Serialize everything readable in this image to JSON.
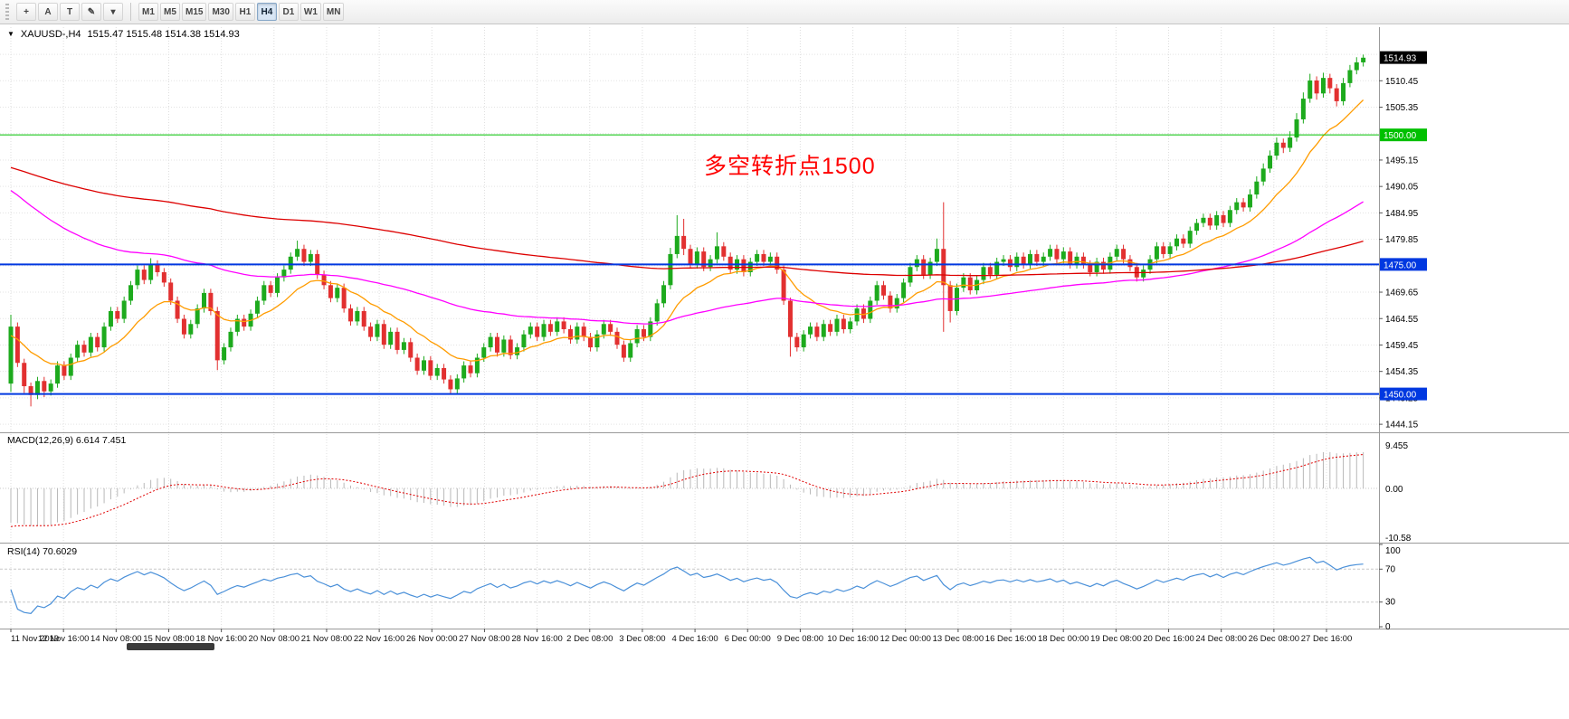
{
  "toolbar": {
    "icon_buttons": [
      {
        "name": "crosshair-tool-button",
        "glyph": "+"
      },
      {
        "name": "arrow-tool-button",
        "glyph": "A"
      },
      {
        "name": "text-tool-button",
        "glyph": "T"
      },
      {
        "name": "drawing-tools-button",
        "glyph": "✎"
      },
      {
        "name": "drawing-tools-dropdown",
        "glyph": "▾"
      }
    ],
    "timeframes": [
      "M1",
      "M5",
      "M15",
      "M30",
      "H1",
      "H4",
      "D1",
      "W1",
      "MN"
    ],
    "active_timeframe": "H4"
  },
  "chart": {
    "title_marker": "▼",
    "symbol_period": "XAUUSD-,H4",
    "ohlc_text": "1515.47 1515.48 1514.38 1514.93",
    "annotation": {
      "text": "多空转折点1500",
      "color": "#ff0000"
    },
    "macd_label": "MACD(12,26,9) 6.614 7.451",
    "rsi_label": "RSI(14) 70.6029"
  },
  "chart_data": {
    "type": "candlestick",
    "symbol": "XAUUSD-",
    "period": "H4",
    "ohlc_current": {
      "open": 1515.47,
      "high": 1515.48,
      "low": 1514.38,
      "close": 1514.93
    },
    "up_color": "#1daa1d",
    "down_color": "#e23030",
    "price_axis": {
      "min": 1442.6,
      "max": 1520.8,
      "grid_start": 1444.15,
      "grid_step": 5.1,
      "labels": [
        1510.45,
        1505.35,
        1495.15,
        1490.05,
        1484.95,
        1479.85,
        1469.65,
        1464.55,
        1459.45,
        1454.35,
        1449.25,
        1444.15
      ]
    },
    "current_badge": {
      "price": 1514.93,
      "label": "1514.93",
      "bg": "#000000"
    },
    "hlines": [
      {
        "price": 1500,
        "label": "1500.00",
        "color": "#00c000",
        "width": 1
      },
      {
        "price": 1475,
        "label": "1475.00",
        "color": "#0038e0",
        "width": 2
      },
      {
        "price": 1450,
        "label": "1450.00",
        "color": "#0038e0",
        "width": 2
      }
    ],
    "moving_averages": [
      {
        "name": "ma-fast-orange",
        "period": 14,
        "seed": 1461,
        "color": "#ff9c00"
      },
      {
        "name": "ma-mid-magenta",
        "period": 72,
        "seed": 1490,
        "color": "#ff00ff"
      },
      {
        "name": "ma-slow-red",
        "period": 200,
        "seed": 1494,
        "color": "#dd0000"
      }
    ],
    "macd": {
      "params": [
        12,
        26,
        9
      ],
      "values": [
        6.614,
        7.451
      ],
      "axis_labels": {
        "top": "9.455",
        "zero": "0.00",
        "bottom": "-10.58"
      },
      "range": [
        -11.8,
        12.2
      ],
      "seeds": [
        1464,
        1472,
        -8.5
      ],
      "hist_color": "#b8b8b8",
      "signal_color": "#e00000"
    },
    "rsi": {
      "period": 14,
      "value": 70.6029,
      "levels": [
        70,
        30
      ],
      "axis_labels": [
        100,
        70,
        30,
        0
      ],
      "range": [
        0,
        100
      ],
      "seeds": [
        0.35,
        0.75
      ],
      "color": "#4a90d9"
    },
    "time_labels": [
      "11 Nov 2019",
      "12 Nov 16:00",
      "14 Nov 08:00",
      "15 Nov 08:00",
      "18 Nov 16:00",
      "20 Nov 08:00",
      "21 Nov 08:00",
      "22 Nov 16:00",
      "26 Nov 00:00",
      "27 Nov 08:00",
      "28 Nov 16:00",
      "2 Dec 08:00",
      "3 Dec 08:00",
      "4 Dec 16:00",
      "6 Dec 00:00",
      "9 Dec 08:00",
      "10 Dec 16:00",
      "12 Dec 00:00",
      "13 Dec 08:00",
      "16 Dec 16:00",
      "18 Dec 00:00",
      "19 Dec 08:00",
      "20 Dec 16:00",
      "24 Dec 08:00",
      "26 Dec 08:00",
      "27 Dec 16:00"
    ],
    "candles": [
      [
        1452,
        1465.3,
        1450.4,
        1463
      ],
      [
        1463,
        1463.8,
        1455.2,
        1456
      ],
      [
        1456,
        1456.8,
        1450.2,
        1451.5
      ],
      [
        1451.5,
        1452.2,
        1447.6,
        1449.8
      ],
      [
        1449.8,
        1453.3,
        1449,
        1452.5
      ],
      [
        1452.5,
        1453.3,
        1449.4,
        1450.5
      ],
      [
        1450.5,
        1452.8,
        1449.7,
        1452
      ],
      [
        1452,
        1456.3,
        1451.2,
        1455.5
      ],
      [
        1455.5,
        1456.3,
        1452.7,
        1453.5
      ],
      [
        1453.5,
        1457.8,
        1452.7,
        1457
      ],
      [
        1457,
        1460.3,
        1456.2,
        1459.5
      ],
      [
        1459.5,
        1460.3,
        1457.2,
        1458
      ],
      [
        1458,
        1461.8,
        1457.2,
        1461
      ],
      [
        1461,
        1461.8,
        1458.2,
        1459
      ],
      [
        1459,
        1463.8,
        1458.2,
        1463
      ],
      [
        1463,
        1466.8,
        1462.2,
        1466
      ],
      [
        1466,
        1466.8,
        1463.7,
        1464.5
      ],
      [
        1464.5,
        1468.8,
        1463.7,
        1468
      ],
      [
        1468,
        1471.8,
        1467.2,
        1471
      ],
      [
        1471,
        1474.8,
        1470.2,
        1474
      ],
      [
        1474,
        1474.8,
        1471.2,
        1472
      ],
      [
        1472,
        1476.2,
        1471.2,
        1475
      ],
      [
        1475,
        1475.8,
        1472.7,
        1473.5
      ],
      [
        1473.5,
        1474.3,
        1470.7,
        1471.5
      ],
      [
        1471.5,
        1472.3,
        1467.2,
        1468
      ],
      [
        1468,
        1468.8,
        1463.7,
        1464.5
      ],
      [
        1464.5,
        1465.3,
        1460.7,
        1461.5
      ],
      [
        1461.5,
        1464.3,
        1460.7,
        1463.5
      ],
      [
        1463.5,
        1467.3,
        1462.7,
        1466.5
      ],
      [
        1466.5,
        1470.3,
        1465.7,
        1469.5
      ],
      [
        1469.5,
        1470.3,
        1465.2,
        1466
      ],
      [
        1466,
        1466.8,
        1454.6,
        1456.5
      ],
      [
        1456.5,
        1459.8,
        1455.7,
        1459
      ],
      [
        1459,
        1462.8,
        1458.2,
        1462
      ],
      [
        1462,
        1465.3,
        1461.2,
        1464.5
      ],
      [
        1464.5,
        1465.3,
        1462.2,
        1463
      ],
      [
        1463,
        1466.3,
        1462.2,
        1465.5
      ],
      [
        1465.5,
        1468.8,
        1464.7,
        1468
      ],
      [
        1468,
        1471.8,
        1467.2,
        1471
      ],
      [
        1471,
        1471.8,
        1468.7,
        1469.5
      ],
      [
        1469.5,
        1473.3,
        1468.7,
        1472.5
      ],
      [
        1472.5,
        1474.8,
        1471.7,
        1474
      ],
      [
        1474,
        1477.3,
        1473.2,
        1476.5
      ],
      [
        1476.5,
        1479.6,
        1475.7,
        1478
      ],
      [
        1478,
        1478.8,
        1474.7,
        1475.5
      ],
      [
        1475.5,
        1477.8,
        1474.7,
        1477
      ],
      [
        1477,
        1477.8,
        1472.2,
        1473
      ],
      [
        1473,
        1473.8,
        1470.2,
        1471
      ],
      [
        1471,
        1471.8,
        1467.7,
        1468.5
      ],
      [
        1468.5,
        1471.3,
        1467.7,
        1470.5
      ],
      [
        1470.5,
        1471.3,
        1465.7,
        1466.5
      ],
      [
        1466.5,
        1467.3,
        1463.2,
        1464
      ],
      [
        1464,
        1466.8,
        1463.2,
        1466
      ],
      [
        1466,
        1466.8,
        1462.2,
        1463
      ],
      [
        1463,
        1463.8,
        1460.2,
        1461
      ],
      [
        1461,
        1464.3,
        1460.2,
        1463.5
      ],
      [
        1463.5,
        1464.3,
        1458.7,
        1459.5
      ],
      [
        1459.5,
        1462.8,
        1458.7,
        1462
      ],
      [
        1462,
        1462.8,
        1457.7,
        1458.5
      ],
      [
        1458.5,
        1460.8,
        1457.7,
        1460
      ],
      [
        1460,
        1460.8,
        1456.2,
        1457
      ],
      [
        1457,
        1457.8,
        1453.7,
        1454.5
      ],
      [
        1454.5,
        1457.3,
        1453.7,
        1456.5
      ],
      [
        1456.5,
        1457.3,
        1452.7,
        1453.5
      ],
      [
        1453.5,
        1455.8,
        1452.7,
        1455
      ],
      [
        1455,
        1455.8,
        1452,
        1452.8
      ],
      [
        1452.8,
        1453.6,
        1450.1,
        1450.9
      ],
      [
        1450.9,
        1453.8,
        1450.1,
        1453
      ],
      [
        1453,
        1456.3,
        1452.2,
        1455.5
      ],
      [
        1455.5,
        1456.3,
        1453.2,
        1454
      ],
      [
        1454,
        1457.8,
        1453.2,
        1457
      ],
      [
        1457,
        1459.8,
        1456.2,
        1459
      ],
      [
        1459,
        1461.8,
        1458.2,
        1461
      ],
      [
        1461,
        1461.8,
        1457.2,
        1458
      ],
      [
        1458,
        1461.3,
        1457.2,
        1460.5
      ],
      [
        1460.5,
        1461.3,
        1456.7,
        1457.5
      ],
      [
        1457.5,
        1459.8,
        1456.7,
        1459
      ],
      [
        1459,
        1462.3,
        1458.2,
        1461.5
      ],
      [
        1461.5,
        1463.8,
        1460.7,
        1463
      ],
      [
        1463,
        1463.8,
        1460.2,
        1461
      ],
      [
        1461,
        1464.3,
        1460.2,
        1463.5
      ],
      [
        1463.5,
        1464.3,
        1461.2,
        1462
      ],
      [
        1462,
        1464.8,
        1461.2,
        1464
      ],
      [
        1464,
        1464.8,
        1461.7,
        1462.5
      ],
      [
        1462.5,
        1463.3,
        1459.7,
        1460.5
      ],
      [
        1460.5,
        1463.8,
        1459.7,
        1463
      ],
      [
        1463,
        1463.8,
        1460.2,
        1461
      ],
      [
        1461,
        1461.8,
        1458.2,
        1459
      ],
      [
        1459,
        1462.3,
        1458.2,
        1461.5
      ],
      [
        1461.5,
        1464.3,
        1460.7,
        1463.5
      ],
      [
        1463.5,
        1464.3,
        1461.2,
        1462
      ],
      [
        1462,
        1462.8,
        1458.7,
        1459.5
      ],
      [
        1459.5,
        1460.3,
        1456.2,
        1457
      ],
      [
        1457,
        1460.6,
        1456.2,
        1459.8
      ],
      [
        1459.8,
        1463.3,
        1459,
        1462.5
      ],
      [
        1462.5,
        1463.3,
        1460.2,
        1461
      ],
      [
        1461,
        1464.8,
        1460.2,
        1464
      ],
      [
        1464,
        1468.3,
        1463.2,
        1467.5
      ],
      [
        1467.5,
        1471.8,
        1466.7,
        1471
      ],
      [
        1471,
        1478.2,
        1470.2,
        1477
      ],
      [
        1477,
        1484.5,
        1476.2,
        1480.5
      ],
      [
        1480.5,
        1483.8,
        1476.8,
        1478
      ],
      [
        1478,
        1478.8,
        1474.2,
        1475
      ],
      [
        1475,
        1478.3,
        1474.2,
        1477.5
      ],
      [
        1477.5,
        1478.3,
        1473.7,
        1474.5
      ],
      [
        1474.5,
        1476.8,
        1473.7,
        1476
      ],
      [
        1476,
        1481.2,
        1475.2,
        1478.5
      ],
      [
        1478.5,
        1479.3,
        1475.7,
        1476.5
      ],
      [
        1476.5,
        1477.3,
        1473.2,
        1474
      ],
      [
        1474,
        1476.8,
        1473.2,
        1476
      ],
      [
        1476,
        1476.8,
        1472.7,
        1473.5
      ],
      [
        1473.5,
        1476.3,
        1472.7,
        1475.5
      ],
      [
        1475.5,
        1477.8,
        1474.7,
        1477
      ],
      [
        1477,
        1477.8,
        1474.7,
        1475.5
      ],
      [
        1475.5,
        1477.3,
        1474.7,
        1476.5
      ],
      [
        1476.5,
        1477.3,
        1473.2,
        1474
      ],
      [
        1474,
        1474.8,
        1467.2,
        1468
      ],
      [
        1468,
        1468.6,
        1457.2,
        1461
      ],
      [
        1461,
        1461.8,
        1458.2,
        1459
      ],
      [
        1459,
        1462.3,
        1458.2,
        1461.5
      ],
      [
        1461.5,
        1463.8,
        1460.7,
        1463
      ],
      [
        1463,
        1463.8,
        1460.2,
        1461
      ],
      [
        1461,
        1464.3,
        1460.2,
        1463.5
      ],
      [
        1463.5,
        1464.3,
        1461.2,
        1462
      ],
      [
        1462,
        1465.3,
        1461.2,
        1464.5
      ],
      [
        1464.5,
        1465.3,
        1461.7,
        1462.5
      ],
      [
        1462.5,
        1464.8,
        1461.7,
        1464
      ],
      [
        1464,
        1467.3,
        1463.2,
        1466.5
      ],
      [
        1466.5,
        1467.3,
        1463.7,
        1464.5
      ],
      [
        1464.5,
        1468.8,
        1463.7,
        1468
      ],
      [
        1468,
        1471.8,
        1467.2,
        1471
      ],
      [
        1471,
        1471.8,
        1468.2,
        1469
      ],
      [
        1469,
        1469.8,
        1465.7,
        1466.5
      ],
      [
        1466.5,
        1469.3,
        1465.7,
        1468.5
      ],
      [
        1468.5,
        1472.3,
        1467.7,
        1471.5
      ],
      [
        1471.5,
        1475.3,
        1470.7,
        1474.5
      ],
      [
        1474.5,
        1476.8,
        1473.7,
        1476
      ],
      [
        1476,
        1476.8,
        1472.2,
        1473
      ],
      [
        1473,
        1476.3,
        1472.2,
        1475.5
      ],
      [
        1475.5,
        1480,
        1474.7,
        1478
      ],
      [
        1478,
        1487,
        1462,
        1471
      ],
      [
        1471,
        1471.8,
        1463.8,
        1466
      ],
      [
        1466,
        1471.3,
        1465.2,
        1470.5
      ],
      [
        1470.5,
        1473.3,
        1469.7,
        1472.5
      ],
      [
        1472.5,
        1473.3,
        1469.2,
        1470
      ],
      [
        1470,
        1472.8,
        1469.2,
        1472
      ],
      [
        1472,
        1475.3,
        1471.2,
        1474.5
      ],
      [
        1474.5,
        1475.3,
        1472.2,
        1473
      ],
      [
        1473,
        1476.3,
        1472.2,
        1475.5
      ],
      [
        1475.5,
        1476.8,
        1474.7,
        1476
      ],
      [
        1476,
        1476.8,
        1473.7,
        1474.5
      ],
      [
        1474.5,
        1477.3,
        1473.7,
        1476.5
      ],
      [
        1476.5,
        1477.3,
        1474.2,
        1475
      ],
      [
        1475,
        1477.8,
        1474.2,
        1477
      ],
      [
        1477,
        1477.8,
        1474.7,
        1475.5
      ],
      [
        1475.5,
        1477.3,
        1474.7,
        1476.5
      ],
      [
        1476.5,
        1478.8,
        1475.7,
        1478
      ],
      [
        1478,
        1478.8,
        1475.2,
        1476
      ],
      [
        1476,
        1478.3,
        1475.2,
        1477.5
      ],
      [
        1477.5,
        1478.3,
        1474.2,
        1475
      ],
      [
        1475,
        1477.3,
        1474.2,
        1476.5
      ],
      [
        1476.5,
        1477.3,
        1474.2,
        1475
      ],
      [
        1475,
        1475.8,
        1472.7,
        1473.5
      ],
      [
        1473.5,
        1476.3,
        1472.7,
        1475.5
      ],
      [
        1475.5,
        1476.3,
        1473.2,
        1474
      ],
      [
        1474,
        1477.3,
        1473.2,
        1476.5
      ],
      [
        1476.5,
        1478.8,
        1475.7,
        1478
      ],
      [
        1478,
        1478.8,
        1475.2,
        1476
      ],
      [
        1476,
        1476.8,
        1473.7,
        1474.5
      ],
      [
        1474.5,
        1475.3,
        1471.7,
        1472.5
      ],
      [
        1472.5,
        1474.8,
        1471.7,
        1474
      ],
      [
        1474,
        1476.8,
        1473.2,
        1476
      ],
      [
        1476,
        1479.3,
        1475.2,
        1478.5
      ],
      [
        1478.5,
        1479.3,
        1476.2,
        1477
      ],
      [
        1477,
        1479.3,
        1476.2,
        1478.5
      ],
      [
        1478.5,
        1480.8,
        1477.7,
        1480
      ],
      [
        1480,
        1480.8,
        1478.2,
        1479
      ],
      [
        1479,
        1482.3,
        1478.2,
        1481.5
      ],
      [
        1481.5,
        1483.8,
        1480.7,
        1483
      ],
      [
        1483,
        1484.8,
        1482.2,
        1484
      ],
      [
        1484,
        1484.8,
        1481.7,
        1482.5
      ],
      [
        1482.5,
        1485.3,
        1481.7,
        1484.5
      ],
      [
        1484.5,
        1485.3,
        1482.2,
        1483
      ],
      [
        1483,
        1486.3,
        1482.2,
        1485.5
      ],
      [
        1485.5,
        1487.8,
        1484.7,
        1487
      ],
      [
        1487,
        1487.8,
        1485.2,
        1486
      ],
      [
        1486,
        1489.5,
        1485.2,
        1488.5
      ],
      [
        1488.5,
        1492,
        1487.7,
        1491
      ],
      [
        1491,
        1494.5,
        1490.2,
        1493.5
      ],
      [
        1493.5,
        1497,
        1492.7,
        1496
      ],
      [
        1496,
        1499.5,
        1495.2,
        1498.5
      ],
      [
        1498.5,
        1499.3,
        1496.5,
        1497.5
      ],
      [
        1497.5,
        1500.7,
        1496.7,
        1499.5
      ],
      [
        1499.5,
        1504.2,
        1498.7,
        1503
      ],
      [
        1503,
        1508.2,
        1502.2,
        1507
      ],
      [
        1507,
        1511.8,
        1506.2,
        1510.5
      ],
      [
        1510.5,
        1511.3,
        1506.8,
        1508
      ],
      [
        1508,
        1512,
        1507.2,
        1511
      ],
      [
        1511,
        1511.8,
        1508,
        1509
      ],
      [
        1509,
        1509.8,
        1505.5,
        1506.5
      ],
      [
        1506.5,
        1511,
        1505.7,
        1510
      ],
      [
        1510,
        1513.5,
        1509.2,
        1512.5
      ],
      [
        1512.5,
        1515,
        1511.7,
        1514
      ],
      [
        1514,
        1515.5,
        1513.2,
        1514.9
      ]
    ]
  }
}
